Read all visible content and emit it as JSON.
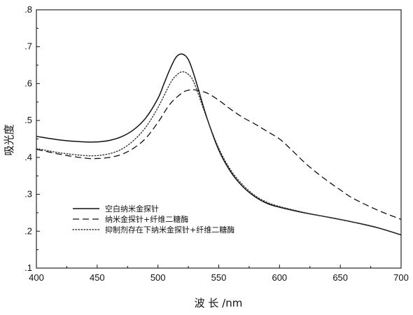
{
  "chart_data": {
    "type": "line",
    "title": "",
    "xlabel": "波 长 /nm",
    "ylabel": "吸光度",
    "xlim": [
      400,
      700
    ],
    "ylim": [
      0.1,
      0.8
    ],
    "grid": false,
    "legend_position": "lower-left",
    "x_ticks": [
      400,
      450,
      500,
      550,
      600,
      650,
      700
    ],
    "x_tick_labels": [
      "400",
      "450",
      "500",
      "550",
      "600",
      "650",
      "700"
    ],
    "y_ticks": [
      0.1,
      0.2,
      0.3,
      0.4,
      0.5,
      0.6,
      0.7,
      0.8
    ],
    "y_tick_labels": [
      ".1",
      ".2",
      ".3",
      ".4",
      ".5",
      ".6",
      ".7",
      ".8"
    ],
    "series": [
      {
        "name": "空白纳米金探针",
        "style": "solid",
        "color": "#111111",
        "x": [
          400,
          420,
          440,
          450,
          460,
          470,
          480,
          490,
          500,
          505,
          510,
          515,
          520,
          525,
          530,
          540,
          550,
          560,
          570,
          580,
          590,
          600,
          620,
          640,
          660,
          680,
          700
        ],
        "y": [
          0.457,
          0.447,
          0.442,
          0.442,
          0.446,
          0.456,
          0.475,
          0.507,
          0.56,
          0.6,
          0.64,
          0.672,
          0.68,
          0.665,
          0.62,
          0.51,
          0.42,
          0.36,
          0.32,
          0.293,
          0.275,
          0.265,
          0.25,
          0.238,
          0.225,
          0.21,
          0.19
        ]
      },
      {
        "name": "纳米金探针+纤维二糖酶",
        "style": "dashed",
        "color": "#111111",
        "x": [
          400,
          420,
          440,
          450,
          460,
          470,
          480,
          490,
          500,
          510,
          520,
          525,
          530,
          540,
          550,
          560,
          570,
          580,
          590,
          600,
          610,
          620,
          630,
          640,
          650,
          660,
          680,
          700
        ],
        "y": [
          0.422,
          0.408,
          0.398,
          0.397,
          0.4,
          0.408,
          0.425,
          0.452,
          0.495,
          0.545,
          0.575,
          0.582,
          0.583,
          0.575,
          0.555,
          0.53,
          0.508,
          0.49,
          0.47,
          0.45,
          0.42,
          0.388,
          0.36,
          0.335,
          0.312,
          0.29,
          0.258,
          0.232
        ]
      },
      {
        "name": "抑制剂存在下纳米金探针+纤维二糖酶",
        "style": "dotted",
        "color": "#333333",
        "x": [
          400,
          420,
          440,
          450,
          460,
          470,
          480,
          490,
          500,
          510,
          515,
          520,
          525,
          530,
          540,
          550,
          560,
          570,
          580,
          590,
          600,
          620,
          640,
          660,
          680,
          700
        ],
        "y": [
          0.424,
          0.412,
          0.405,
          0.405,
          0.41,
          0.422,
          0.446,
          0.482,
          0.535,
          0.6,
          0.622,
          0.632,
          0.625,
          0.6,
          0.508,
          0.425,
          0.365,
          0.325,
          0.296,
          0.278,
          0.267,
          0.251,
          0.238,
          0.225,
          0.21,
          0.19
        ]
      }
    ]
  }
}
